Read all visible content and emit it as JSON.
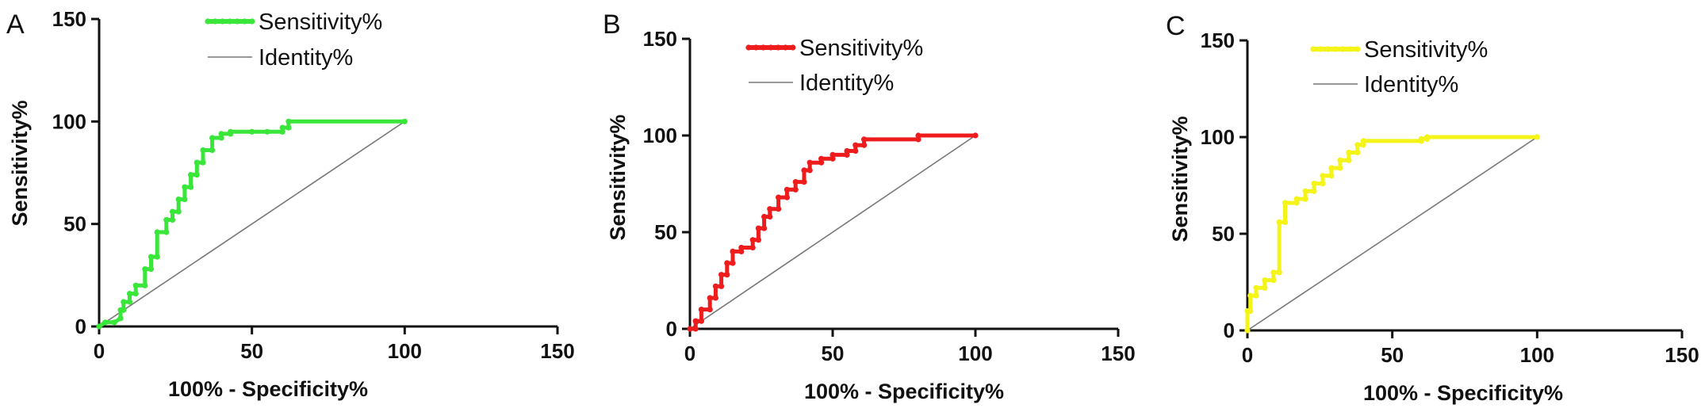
{
  "chart_data": [
    {
      "type": "line",
      "panel": "A",
      "xlabel": "100% - Specificity%",
      "ylabel": "Sensitivity%",
      "xlim": [
        0,
        150
      ],
      "ylim": [
        0,
        150
      ],
      "xticks": [
        0,
        50,
        100,
        150
      ],
      "yticks": [
        0,
        50,
        100,
        150
      ],
      "legend_position": "top",
      "series": [
        {
          "name": "Sensitivity%",
          "color": "#39e639",
          "markers": true,
          "x": [
            0,
            2,
            5,
            7,
            7,
            8,
            8,
            10,
            10,
            12,
            12,
            15,
            15,
            17,
            17,
            19,
            19,
            22,
            22,
            24,
            24,
            26,
            26,
            28,
            28,
            30,
            30,
            32,
            32,
            34,
            34,
            37,
            37,
            40,
            40,
            43,
            43,
            50,
            55,
            60,
            60,
            62,
            62,
            100
          ],
          "y": [
            0,
            2,
            2,
            4,
            8,
            8,
            12,
            12,
            16,
            16,
            20,
            20,
            28,
            28,
            34,
            34,
            46,
            46,
            52,
            52,
            56,
            56,
            62,
            62,
            68,
            68,
            74,
            74,
            80,
            80,
            86,
            86,
            92,
            92,
            94,
            94,
            95,
            95,
            95,
            95,
            97,
            97,
            100,
            100
          ]
        },
        {
          "name": "Identity%",
          "color": "#777777",
          "markers": false,
          "x": [
            0,
            100
          ],
          "y": [
            0,
            100
          ]
        }
      ]
    },
    {
      "type": "line",
      "panel": "B",
      "xlabel": "100% - Specificity%",
      "ylabel": "Sensitivity%",
      "xlim": [
        0,
        150
      ],
      "ylim": [
        0,
        150
      ],
      "xticks": [
        0,
        50,
        100,
        150
      ],
      "yticks": [
        0,
        50,
        100,
        150
      ],
      "legend_position": "top",
      "series": [
        {
          "name": "Sensitivity%",
          "color": "#ee1c1c",
          "markers": true,
          "x": [
            0,
            2,
            2,
            4,
            4,
            7,
            7,
            9,
            9,
            11,
            11,
            13,
            13,
            15,
            15,
            18,
            18,
            22,
            22,
            24,
            24,
            26,
            26,
            28,
            28,
            31,
            31,
            34,
            34,
            37,
            37,
            40,
            40,
            42,
            42,
            46,
            46,
            50,
            50,
            55,
            55,
            58,
            58,
            61,
            61,
            80,
            80,
            100
          ],
          "y": [
            0,
            0,
            4,
            4,
            10,
            10,
            16,
            16,
            22,
            22,
            28,
            28,
            34,
            34,
            40,
            40,
            42,
            42,
            46,
            46,
            52,
            52,
            58,
            58,
            62,
            62,
            68,
            68,
            72,
            72,
            76,
            76,
            82,
            82,
            86,
            86,
            88,
            88,
            90,
            90,
            92,
            92,
            95,
            95,
            98,
            98,
            100,
            100
          ]
        },
        {
          "name": "Identity%",
          "color": "#777777",
          "markers": false,
          "x": [
            0,
            100
          ],
          "y": [
            0,
            100
          ]
        }
      ]
    },
    {
      "type": "line",
      "panel": "C",
      "xlabel": "100% - Specificity%",
      "ylabel": "Sensitivity%",
      "xlim": [
        0,
        150
      ],
      "ylim": [
        0,
        150
      ],
      "xticks": [
        0,
        50,
        100,
        150
      ],
      "yticks": [
        0,
        50,
        100,
        150
      ],
      "legend_position": "top",
      "series": [
        {
          "name": "Sensitivity%",
          "color": "#f4f418",
          "markers": true,
          "x": [
            0,
            0,
            1,
            1,
            3,
            3,
            6,
            6,
            9,
            9,
            11,
            11,
            13,
            13,
            17,
            17,
            20,
            20,
            23,
            23,
            26,
            26,
            29,
            29,
            32,
            32,
            35,
            35,
            38,
            38,
            40,
            40,
            60,
            60,
            62,
            62,
            100
          ],
          "y": [
            0,
            10,
            10,
            18,
            18,
            22,
            22,
            26,
            26,
            30,
            30,
            56,
            56,
            66,
            66,
            68,
            68,
            72,
            72,
            76,
            76,
            80,
            80,
            84,
            84,
            88,
            88,
            92,
            92,
            96,
            96,
            98,
            98,
            99,
            99,
            100,
            100
          ]
        },
        {
          "name": "Identity%",
          "color": "#777777",
          "markers": false,
          "x": [
            0,
            100
          ],
          "y": [
            0,
            100
          ]
        }
      ]
    }
  ]
}
